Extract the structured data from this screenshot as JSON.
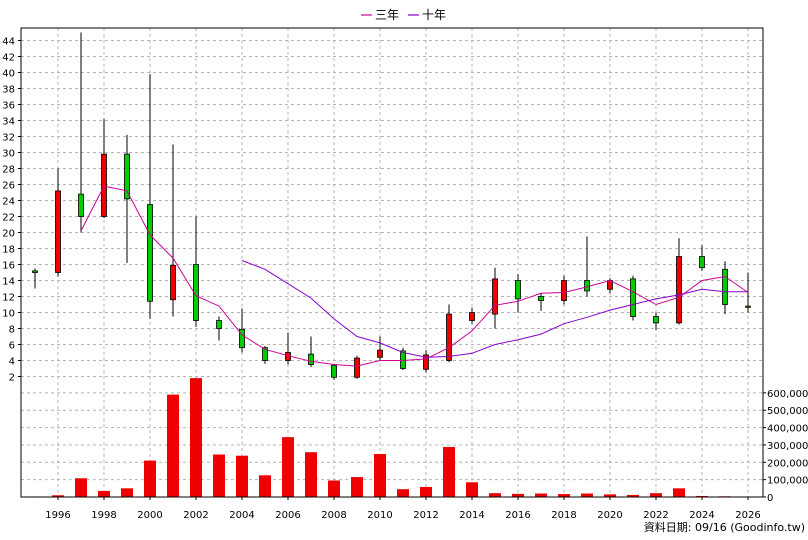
{
  "chart_data": {
    "type": "candlestick+line+bar",
    "legend": [
      "三年",
      "十年"
    ],
    "legend_placement": "top-center",
    "grid": true,
    "x_ticks": [
      "1996",
      "1998",
      "2000",
      "2002",
      "2004",
      "2006",
      "2008",
      "2010",
      "2012",
      "2014",
      "2016",
      "2018",
      "2020",
      "2022",
      "2024",
      "2026"
    ],
    "price_axis": {
      "ticks": [
        2,
        4,
        6,
        8,
        10,
        12,
        14,
        16,
        18,
        20,
        22,
        24,
        26,
        28,
        30,
        32,
        34,
        36,
        38,
        40,
        42,
        44
      ],
      "side": "left"
    },
    "volume_axis": {
      "ticks": [
        "0",
        "100,000",
        "200,000",
        "300,000",
        "400,000",
        "500,000",
        "600,000"
      ],
      "side": "right",
      "ylim": [
        0,
        680000
      ]
    },
    "candles": [
      {
        "year": 1995,
        "open": 15.2,
        "close": 15.0,
        "high": 15.5,
        "low": 13.0
      },
      {
        "year": 1996,
        "open": 15.0,
        "close": 25.2,
        "high": 28.0,
        "low": 14.5
      },
      {
        "year": 1997,
        "open": 24.8,
        "close": 22.0,
        "high": 45.0,
        "low": 20.0
      },
      {
        "year": 1998,
        "open": 22.0,
        "close": 29.8,
        "high": 34.2,
        "low": 21.8
      },
      {
        "year": 1999,
        "open": 29.8,
        "close": 24.2,
        "high": 32.2,
        "low": 16.2
      },
      {
        "year": 2000,
        "open": 23.5,
        "close": 11.4,
        "high": 39.8,
        "low": 9.2
      },
      {
        "year": 2001,
        "open": 11.6,
        "close": 15.9,
        "high": 31.0,
        "low": 9.5
      },
      {
        "year": 2002,
        "open": 16.0,
        "close": 9.0,
        "high": 22.0,
        "low": 8.2
      },
      {
        "year": 2003,
        "open": 9.0,
        "close": 8.0,
        "high": 9.5,
        "low": 6.5
      },
      {
        "year": 2004,
        "open": 7.9,
        "close": 5.6,
        "high": 10.5,
        "low": 5.0
      },
      {
        "year": 2005,
        "open": 5.6,
        "close": 4.0,
        "high": 5.8,
        "low": 3.6
      },
      {
        "year": 2006,
        "open": 4.0,
        "close": 5.0,
        "high": 7.5,
        "low": 3.5
      },
      {
        "year": 2007,
        "open": 4.8,
        "close": 3.5,
        "high": 7.0,
        "low": 3.2
      },
      {
        "year": 2008,
        "open": 3.4,
        "close": 1.9,
        "high": 3.6,
        "low": 1.6
      },
      {
        "year": 2009,
        "open": 1.9,
        "close": 4.3,
        "high": 4.6,
        "low": 1.7
      },
      {
        "year": 2010,
        "open": 4.4,
        "close": 5.3,
        "high": 7.0,
        "low": 4.0
      },
      {
        "year": 2011,
        "open": 5.2,
        "close": 3.0,
        "high": 5.6,
        "low": 2.8
      },
      {
        "year": 2012,
        "open": 2.9,
        "close": 4.7,
        "high": 5.3,
        "low": 2.5
      },
      {
        "year": 2013,
        "open": 4.0,
        "close": 9.8,
        "high": 11.0,
        "low": 3.8
      },
      {
        "year": 2014,
        "open": 9.0,
        "close": 10.0,
        "high": 10.6,
        "low": 8.6
      },
      {
        "year": 2015,
        "open": 9.8,
        "close": 14.2,
        "high": 15.6,
        "low": 8.0
      },
      {
        "year": 2016,
        "open": 14.0,
        "close": 11.7,
        "high": 14.8,
        "low": 10.0
      },
      {
        "year": 2017,
        "open": 12.0,
        "close": 11.5,
        "high": 12.4,
        "low": 10.2
      },
      {
        "year": 2018,
        "open": 11.5,
        "close": 14.0,
        "high": 14.6,
        "low": 11.0
      },
      {
        "year": 2019,
        "open": 14.0,
        "close": 12.7,
        "high": 19.5,
        "low": 12.0
      },
      {
        "year": 2020,
        "open": 12.9,
        "close": 14.0,
        "high": 14.3,
        "low": 12.4
      },
      {
        "year": 2021,
        "open": 14.2,
        "close": 9.5,
        "high": 14.6,
        "low": 9.0
      },
      {
        "year": 2022,
        "open": 9.5,
        "close": 8.7,
        "high": 10.0,
        "low": 7.8
      },
      {
        "year": 2023,
        "open": 8.7,
        "close": 17.0,
        "high": 19.3,
        "low": 8.5
      },
      {
        "year": 2024,
        "open": 17.0,
        "close": 15.6,
        "high": 18.4,
        "low": 15.2
      },
      {
        "year": 2025,
        "open": 15.4,
        "close": 11.0,
        "high": 16.4,
        "low": 9.8
      },
      {
        "year": 2026,
        "open": 10.8,
        "close": 10.7,
        "high": 15.0,
        "low": 10.0
      }
    ],
    "ma_series": [
      {
        "name": "三年",
        "color": "#cc0099",
        "points": [
          [
            1997,
            20.2
          ],
          [
            1998,
            25.8
          ],
          [
            1999,
            25.2
          ],
          [
            2000,
            19.7
          ],
          [
            2001,
            16.8
          ],
          [
            2002,
            12.1
          ],
          [
            2003,
            10.8
          ],
          [
            2004,
            7.2
          ],
          [
            2005,
            5.4
          ],
          [
            2006,
            4.6
          ],
          [
            2007,
            3.9
          ],
          [
            2008,
            3.5
          ],
          [
            2009,
            3.3
          ],
          [
            2010,
            4.0
          ],
          [
            2011,
            4.0
          ],
          [
            2012,
            4.2
          ],
          [
            2013,
            5.6
          ],
          [
            2014,
            7.7
          ],
          [
            2015,
            10.9
          ],
          [
            2016,
            11.4
          ],
          [
            2017,
            12.4
          ],
          [
            2018,
            12.5
          ],
          [
            2019,
            13.2
          ],
          [
            2020,
            14.0
          ],
          [
            2021,
            12.6
          ],
          [
            2022,
            11.0
          ],
          [
            2023,
            11.9
          ],
          [
            2024,
            14.0
          ],
          [
            2025,
            14.5
          ],
          [
            2026,
            12.5
          ]
        ]
      },
      {
        "name": "十年",
        "color": "#8800cc",
        "points": [
          [
            2004,
            16.5
          ],
          [
            2005,
            15.4
          ],
          [
            2006,
            13.6
          ],
          [
            2007,
            11.8
          ],
          [
            2008,
            9.2
          ],
          [
            2009,
            7.0
          ],
          [
            2010,
            6.2
          ],
          [
            2011,
            5.0
          ],
          [
            2012,
            4.4
          ],
          [
            2013,
            4.5
          ],
          [
            2014,
            4.9
          ],
          [
            2015,
            6.0
          ],
          [
            2016,
            6.6
          ],
          [
            2017,
            7.3
          ],
          [
            2018,
            8.6
          ],
          [
            2019,
            9.4
          ],
          [
            2020,
            10.3
          ],
          [
            2021,
            11.0
          ],
          [
            2022,
            11.7
          ],
          [
            2023,
            12.2
          ],
          [
            2024,
            12.9
          ],
          [
            2025,
            12.6
          ],
          [
            2026,
            12.6
          ]
        ]
      }
    ],
    "volume": [
      {
        "year": 1995,
        "value": 3000
      },
      {
        "year": 1996,
        "value": 10000
      },
      {
        "year": 1997,
        "value": 108000
      },
      {
        "year": 1998,
        "value": 35000
      },
      {
        "year": 1999,
        "value": 50000
      },
      {
        "year": 2000,
        "value": 210000
      },
      {
        "year": 2001,
        "value": 590000
      },
      {
        "year": 2002,
        "value": 685000
      },
      {
        "year": 2003,
        "value": 245000
      },
      {
        "year": 2004,
        "value": 238000
      },
      {
        "year": 2005,
        "value": 125000
      },
      {
        "year": 2006,
        "value": 345000
      },
      {
        "year": 2007,
        "value": 258000
      },
      {
        "year": 2008,
        "value": 95000
      },
      {
        "year": 2009,
        "value": 115000
      },
      {
        "year": 2010,
        "value": 248000
      },
      {
        "year": 2011,
        "value": 45000
      },
      {
        "year": 2012,
        "value": 58000
      },
      {
        "year": 2013,
        "value": 288000
      },
      {
        "year": 2014,
        "value": 85000
      },
      {
        "year": 2015,
        "value": 22000
      },
      {
        "year": 2016,
        "value": 18000
      },
      {
        "year": 2017,
        "value": 20000
      },
      {
        "year": 2018,
        "value": 17000
      },
      {
        "year": 2019,
        "value": 20000
      },
      {
        "year": 2020,
        "value": 15000
      },
      {
        "year": 2021,
        "value": 12000
      },
      {
        "year": 2022,
        "value": 22000
      },
      {
        "year": 2023,
        "value": 50000
      },
      {
        "year": 2024,
        "value": 6000
      },
      {
        "year": 2025,
        "value": 4000
      },
      {
        "year": 2026,
        "value": 2000
      }
    ],
    "colors": {
      "up": "#ee0000",
      "down": "#00cc00",
      "volume": "#ee0000",
      "grid": "#b4b4b4"
    }
  },
  "footer": {
    "text": "資料日期: 09/16 (Goodinfo.tw)"
  }
}
